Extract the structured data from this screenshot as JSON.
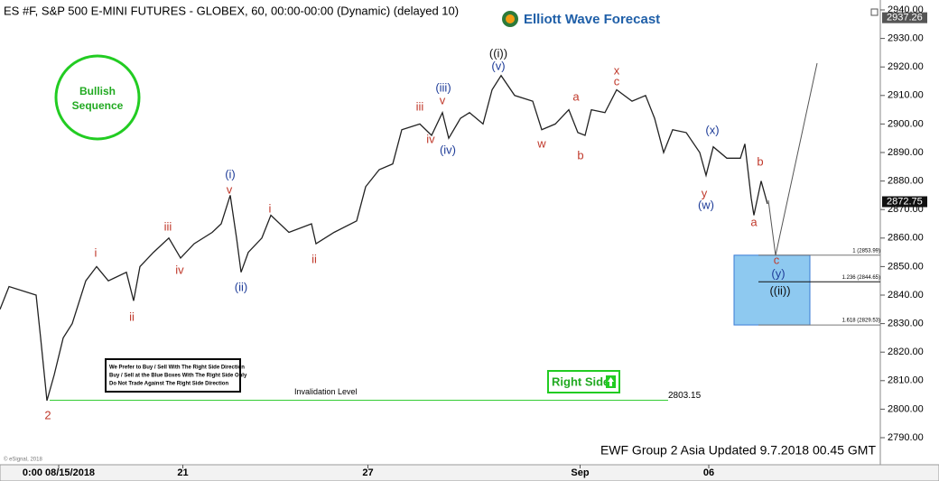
{
  "chart_data": {
    "type": "line",
    "title": "ES #F, S&P 500 E-MINI FUTURES - GLOBEX, 60, 00:00-00:00 (Dynamic) (delayed 10)",
    "logo": "Elliott Wave Forecast",
    "footer": "EWF Group 2 Asia  Updated 9.7.2018 00.45 GMT",
    "copyright": "© eSignal, 2018",
    "badge": [
      "Bullish",
      "Sequence"
    ],
    "notice": [
      "We Prefer to Buy / Sell With The Right Side Direction",
      "Buy / Sell at the Blue Boxes With The Right Side Only",
      "Do Not Trade Against The Right Side Direction"
    ],
    "right_side": "Right Side",
    "x": [
      0,
      2,
      8,
      9,
      10.4,
      12,
      14,
      16,
      19,
      21.4,
      24,
      28,
      29.6,
      31,
      34,
      37.4,
      40,
      43,
      47,
      49,
      51,
      52.4,
      53.4,
      55,
      58,
      60,
      64,
      69,
      70,
      74,
      79,
      81,
      84,
      87,
      89,
      93,
      95.6,
      98,
      99.4,
      102,
      104,
      107,
      109,
      111,
      114,
      118,
      120,
      123,
      126,
      128,
      129.6,
      131,
      134,
      136.6,
      140,
      143,
      145,
      147,
      149,
      152,
      155,
      156.4,
      158,
      161,
      164,
      165,
      166.4,
      167,
      168.6,
      170
    ],
    "series": [
      {
        "name": "ES #F",
        "color": "#222222",
        "values": [
          2835,
          2843,
          2840,
          2825,
          2803,
          2812,
          2825,
          2830,
          2845,
          2850,
          2845,
          2848,
          2838,
          2850,
          2855,
          2860,
          2853,
          2858,
          2862,
          2865,
          2875,
          2860,
          2848,
          2855,
          2860,
          2868,
          2862,
          2865,
          2858,
          2862,
          2866,
          2878,
          2884,
          2886,
          2898,
          2900,
          2896,
          2904,
          2895,
          2902,
          2904,
          2900,
          2912,
          2917,
          2910,
          2908,
          2898,
          2900,
          2905,
          2897,
          2896,
          2905,
          2904,
          2912,
          2908,
          2910,
          2902,
          2890,
          2898,
          2897,
          2890,
          2882,
          2892,
          2888,
          2888,
          2893,
          2874,
          2868,
          2880,
          2872
        ]
      }
    ],
    "xlim": [
      0,
      195
    ],
    "xticks": [
      {
        "value": 13,
        "label": "0:00 08/15/2018"
      },
      {
        "value": 40.5,
        "label": "21"
      },
      {
        "value": 81.5,
        "label": "27"
      },
      {
        "value": 128.5,
        "label": "Sep"
      },
      {
        "value": 157,
        "label": "06"
      }
    ],
    "ylim": [
      2790,
      2940
    ],
    "yticks": [
      {
        "value": 2790,
        "label": "2790.00"
      },
      {
        "value": 2800,
        "label": "2800.00"
      },
      {
        "value": 2810,
        "label": "2810.00"
      },
      {
        "value": 2820,
        "label": "2820.00"
      },
      {
        "value": 2830,
        "label": "2830.00"
      },
      {
        "value": 2840,
        "label": "2840.00"
      },
      {
        "value": 2850,
        "label": "2850.00"
      },
      {
        "value": 2860,
        "label": "2860.00"
      },
      {
        "value": 2870,
        "label": "2870.00"
      },
      {
        "value": 2880,
        "label": "2880.00"
      },
      {
        "value": 2890,
        "label": "2890.00"
      },
      {
        "value": 2900,
        "label": "2900.00"
      },
      {
        "value": 2910,
        "label": "2910.00"
      },
      {
        "value": 2920,
        "label": "2920.00"
      },
      {
        "value": 2930,
        "label": "2930.00"
      },
      {
        "value": 2940,
        "label": "2940.00"
      }
    ],
    "price_labels": [
      {
        "value": 2937.26,
        "label": "2937.26"
      },
      {
        "value": 2872.75,
        "label": "2872.75"
      }
    ],
    "fib_levels": [
      {
        "value": 2853.99,
        "label": "1 (2853.99)"
      },
      {
        "value": 2844.65,
        "label": "1.236 (2844.65)"
      },
      {
        "value": 2829.53,
        "label": "1.618 (2829.53)"
      }
    ],
    "invalidation": {
      "name": "Invalidation Level",
      "value": 2803.15,
      "label": "2803.15"
    },
    "annotations": [
      {
        "text": "2",
        "color": "#c0392b"
      },
      {
        "text": "i",
        "color": "#c0392b"
      },
      {
        "text": "ii",
        "color": "#c0392b"
      },
      {
        "text": "iii",
        "color": "#c0392b"
      },
      {
        "text": "iv",
        "color": "#c0392b"
      },
      {
        "text": "v",
        "color": "#c0392b"
      },
      {
        "text": "i",
        "color": "#c0392b"
      },
      {
        "text": "ii",
        "color": "#c0392b"
      },
      {
        "text": "iii",
        "color": "#c0392b"
      },
      {
        "text": "iv",
        "color": "#c0392b"
      },
      {
        "text": "v",
        "color": "#c0392b"
      },
      {
        "text": "w",
        "color": "#c0392b"
      },
      {
        "text": "a",
        "color": "#c0392b"
      },
      {
        "text": "b",
        "color": "#c0392b"
      },
      {
        "text": "x",
        "color": "#c0392b"
      },
      {
        "text": "c",
        "color": "#c0392b"
      },
      {
        "text": "y",
        "color": "#c0392b"
      },
      {
        "text": "a",
        "color": "#c0392b"
      },
      {
        "text": "b",
        "color": "#c0392b"
      },
      {
        "text": "c",
        "color": "#c0392b"
      },
      {
        "text": "(i)",
        "color": "#1f3d99"
      },
      {
        "text": "(ii)",
        "color": "#1f3d99"
      },
      {
        "text": "(iii)",
        "color": "#1f3d99"
      },
      {
        "text": "(iv)",
        "color": "#1f3d99"
      },
      {
        "text": "(v)",
        "color": "#1f3d99"
      },
      {
        "text": "(x)",
        "color": "#1f3d99"
      },
      {
        "text": "(w)",
        "color": "#1f3d99"
      },
      {
        "text": "(y)",
        "color": "#1f3d99"
      },
      {
        "text": "((i))",
        "color": "#111111"
      },
      {
        "text": "((ii))",
        "color": "#111111"
      }
    ]
  }
}
